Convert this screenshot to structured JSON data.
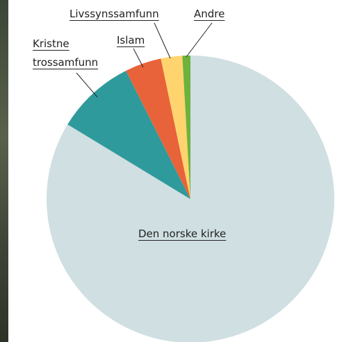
{
  "chart_data": {
    "type": "pie",
    "categories": [
      "Den norske kirke",
      "Kristne trossamfunn",
      "Islam",
      "Livssynssamfunn",
      "Andre"
    ],
    "values": [
      83.7,
      8.9,
      4.1,
      2.4,
      0.9
    ],
    "colors": [
      "#cfdfe2",
      "#2f9a9c",
      "#e8633a",
      "#ffd46e",
      "#6cb23c"
    ]
  }
}
